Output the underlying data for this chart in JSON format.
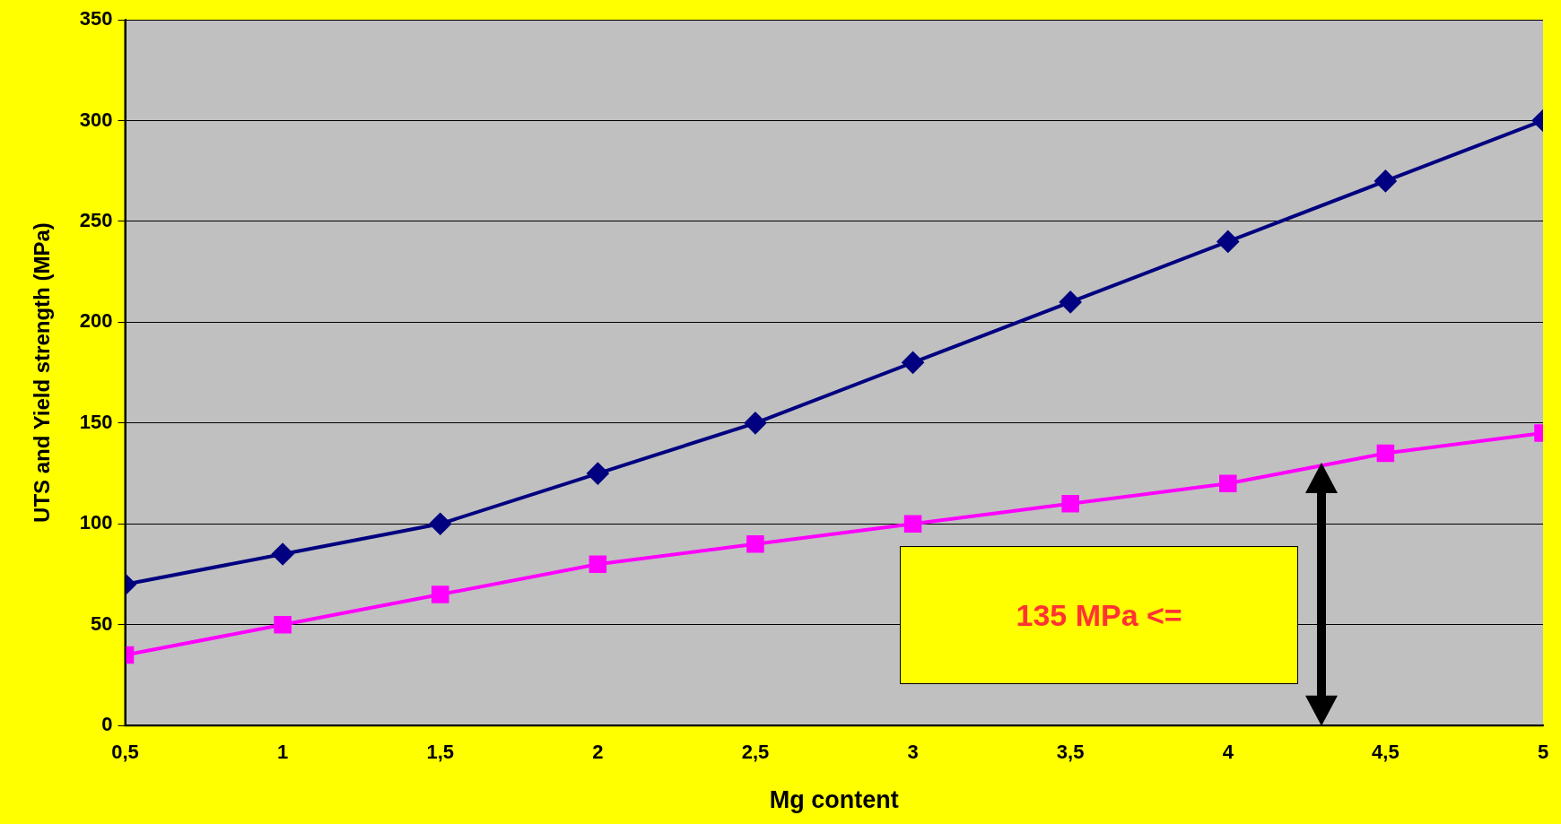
{
  "chart_data": {
    "type": "line",
    "xlabel": "Mg content",
    "ylabel": "UTS and Yield strength (MPa)",
    "x": [
      0.5,
      1,
      1.5,
      2,
      2.5,
      3,
      3.5,
      4,
      4.5,
      5
    ],
    "series": [
      {
        "color": "#000080",
        "marker": "diamond",
        "values": [
          70,
          85,
          100,
          125,
          150,
          180,
          210,
          240,
          270,
          300
        ]
      },
      {
        "color": "#ff00ff",
        "marker": "square",
        "values": [
          35,
          50,
          65,
          80,
          90,
          100,
          110,
          120,
          135,
          145
        ]
      }
    ],
    "xlim": [
      0.5,
      5
    ],
    "xticks": [
      {
        "value": 0.5,
        "label": "0,5"
      },
      1,
      {
        "value": 1.5,
        "label": "1,5"
      },
      2,
      {
        "value": 2.5,
        "label": "2,5"
      },
      3,
      {
        "value": 3.5,
        "label": "3,5"
      },
      4,
      {
        "value": 4.5,
        "label": "4,5"
      },
      5
    ],
    "ylim": [
      0,
      350
    ],
    "yticks": [
      0,
      50,
      100,
      150,
      200,
      250,
      300,
      350
    ],
    "grid": "y",
    "legend": false,
    "line_style": "solid",
    "annotations": [
      "135 MPa <="
    ]
  }
}
